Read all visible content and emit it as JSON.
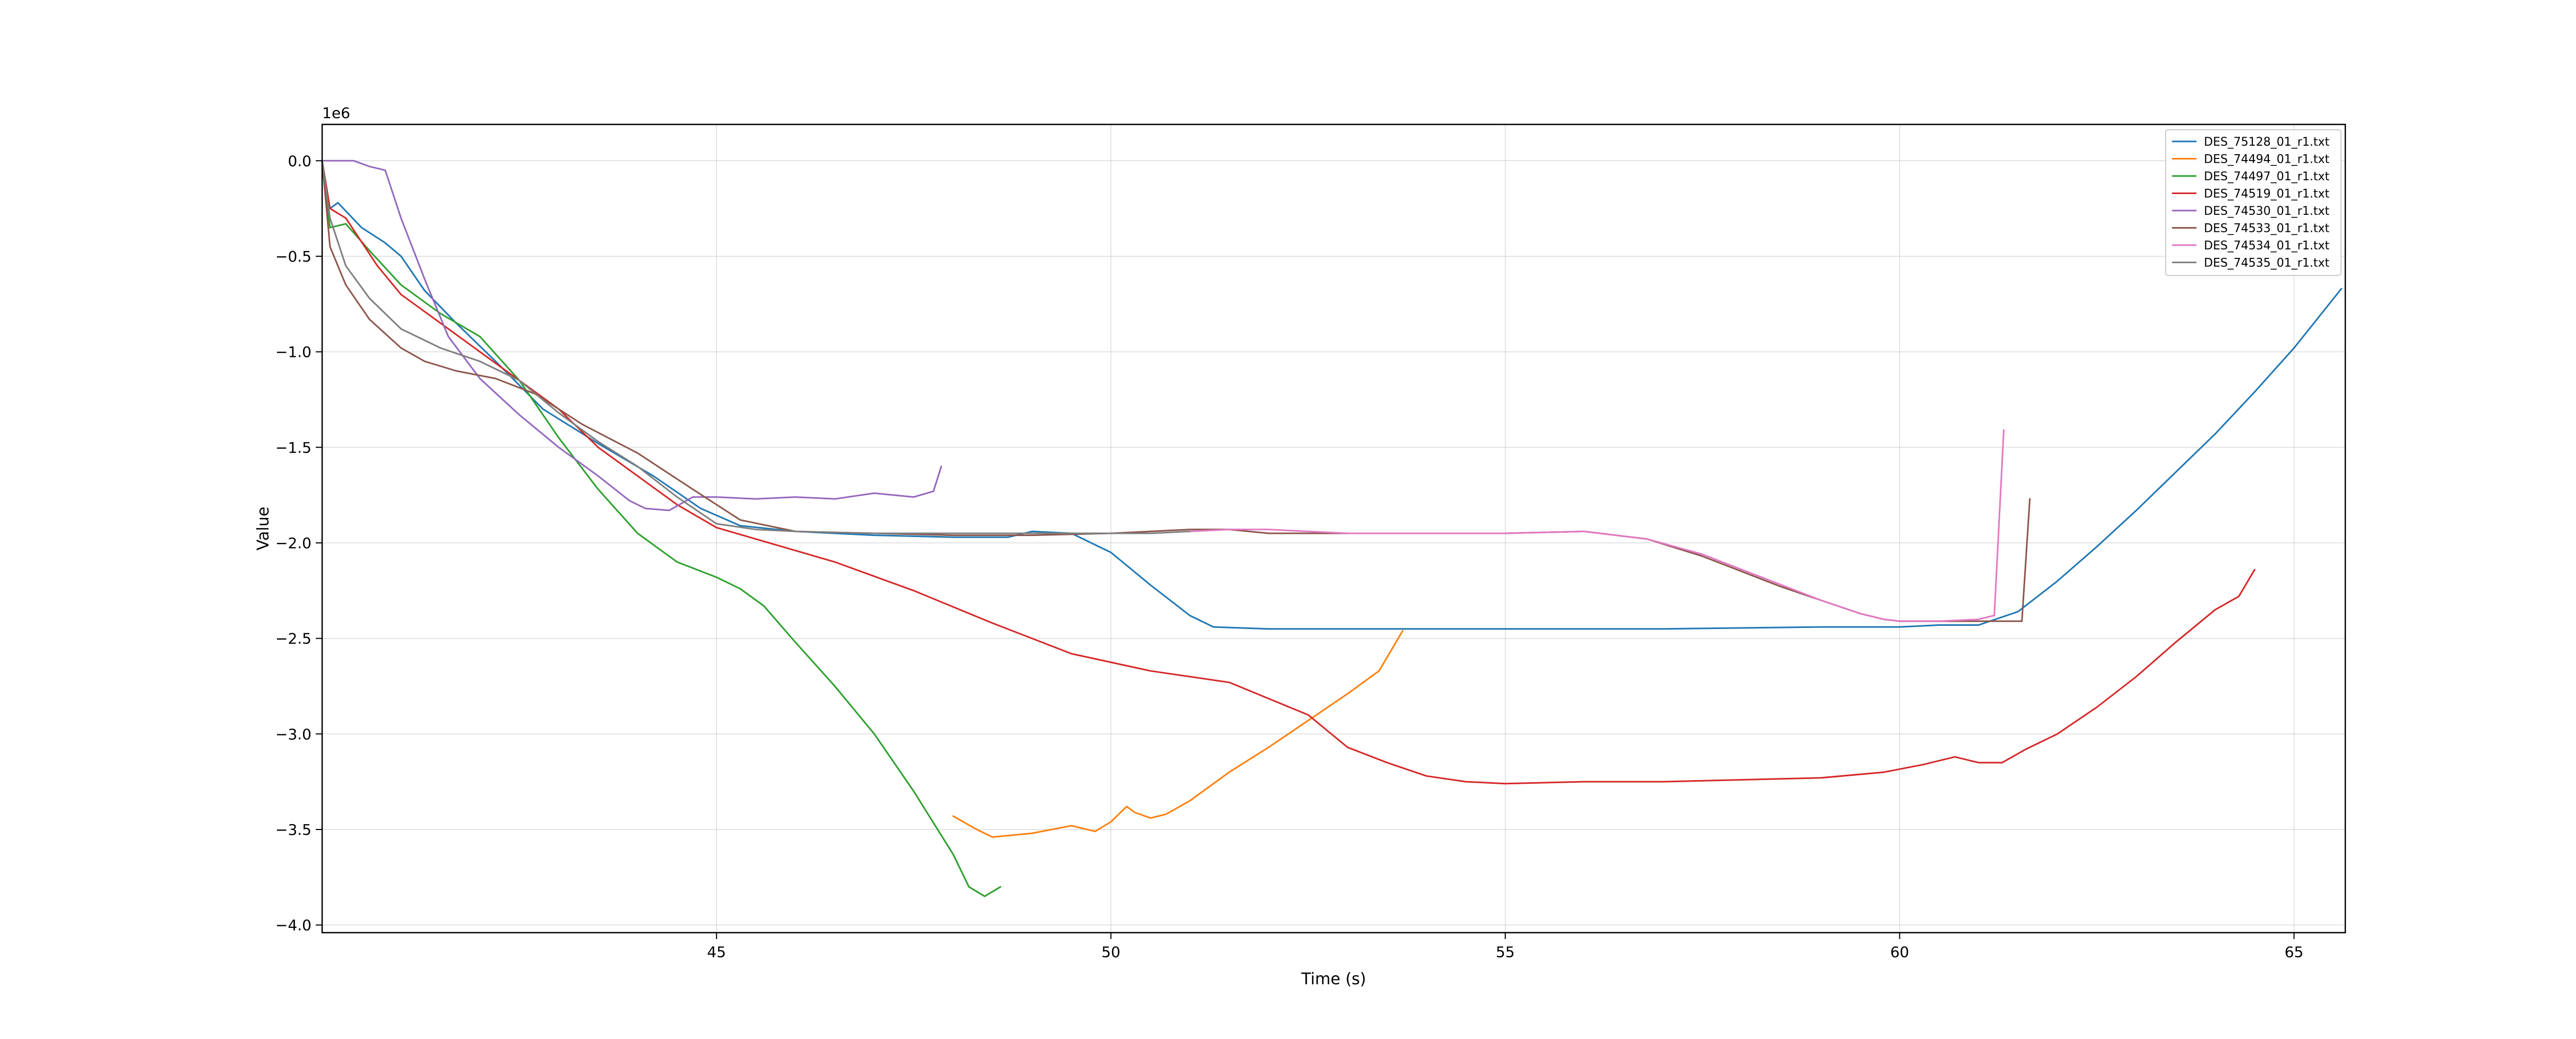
{
  "chart_data": {
    "type": "line",
    "title": "",
    "xlabel": "Time (s)",
    "ylabel": "Value",
    "y_offset_text": "1e6",
    "xlim": [
      40.0,
      65.65
    ],
    "ylim": [
      -4.04,
      0.19
    ],
    "xticks": [
      45,
      50,
      55,
      60,
      65
    ],
    "xtick_labels": [
      "45",
      "50",
      "55",
      "60",
      "65"
    ],
    "yticks": [
      0.0,
      -0.5,
      -1.0,
      -1.5,
      -2.0,
      -2.5,
      -3.0,
      -3.5,
      -4.0
    ],
    "ytick_labels": [
      "0.0",
      "−0.5",
      "−1.0",
      "−1.5",
      "−2.0",
      "−2.5",
      "−3.0",
      "−3.5",
      "−4.0"
    ],
    "grid": true,
    "legend_position": "top-right",
    "series": [
      {
        "name": "DES_75128_01_r1.txt",
        "color": "#1f77b4",
        "x": [
          40.0,
          40.1,
          40.2,
          40.5,
          40.8,
          41.0,
          41.3,
          41.7,
          42.2,
          42.8,
          43.5,
          44.2,
          44.8,
          45.3,
          46.0,
          47.0,
          48.0,
          48.7,
          49.0,
          49.5,
          50.0,
          50.5,
          51.0,
          51.3,
          52.0,
          53.0,
          55.0,
          57.0,
          59.0,
          60.0,
          60.5,
          61.0,
          61.5,
          62.0,
          62.5,
          63.0,
          63.5,
          64.0,
          64.5,
          65.0,
          65.6
        ],
        "y": [
          0.0,
          -0.25,
          -0.22,
          -0.35,
          -0.43,
          -0.5,
          -0.68,
          -0.85,
          -1.05,
          -1.3,
          -1.48,
          -1.65,
          -1.82,
          -1.91,
          -1.94,
          -1.96,
          -1.97,
          -1.97,
          -1.94,
          -1.95,
          -2.05,
          -2.22,
          -2.38,
          -2.44,
          -2.45,
          -2.45,
          -2.45,
          -2.45,
          -2.44,
          -2.44,
          -2.43,
          -2.43,
          -2.36,
          -2.2,
          -2.02,
          -1.83,
          -1.63,
          -1.43,
          -1.21,
          -0.98,
          -0.67
        ]
      },
      {
        "name": "DES_74494_01_r1.txt",
        "color": "#ff7f0e",
        "x": [
          48.0,
          48.3,
          48.5,
          49.0,
          49.5,
          49.8,
          50.0,
          50.2,
          50.3,
          50.5,
          50.7,
          51.0,
          51.5,
          52.0,
          52.5,
          53.0,
          53.4,
          53.7
        ],
        "y": [
          -3.43,
          -3.5,
          -3.54,
          -3.52,
          -3.48,
          -3.51,
          -3.46,
          -3.38,
          -3.41,
          -3.44,
          -3.42,
          -3.35,
          -3.2,
          -3.07,
          -2.93,
          -2.79,
          -2.67,
          -2.46
        ]
      },
      {
        "name": "DES_74497_01_r1.txt",
        "color": "#2ca02c",
        "x": [
          40.0,
          40.1,
          40.3,
          40.6,
          41.0,
          41.5,
          42.0,
          42.5,
          43.0,
          43.5,
          44.0,
          44.5,
          45.0,
          45.3,
          45.6,
          46.0,
          46.5,
          47.0,
          47.5,
          48.0,
          48.2,
          48.4,
          48.6
        ],
        "y": [
          0.0,
          -0.35,
          -0.33,
          -0.47,
          -0.65,
          -0.8,
          -0.92,
          -1.15,
          -1.45,
          -1.72,
          -1.95,
          -2.1,
          -2.18,
          -2.24,
          -2.33,
          -2.52,
          -2.75,
          -3.0,
          -3.3,
          -3.63,
          -3.8,
          -3.85,
          -3.8
        ]
      },
      {
        "name": "DES_74519_01_r1.txt",
        "color": "#d62728",
        "x": [
          40.0,
          40.1,
          40.3,
          40.7,
          41.0,
          41.5,
          42.0,
          42.5,
          43.0,
          43.5,
          44.0,
          44.5,
          45.0,
          45.5,
          46.5,
          47.5,
          48.5,
          49.5,
          50.5,
          51.5,
          52.5,
          53.0,
          53.5,
          54.0,
          54.5,
          55.0,
          56.0,
          57.0,
          58.0,
          59.0,
          59.8,
          60.3,
          60.7,
          61.0,
          61.3,
          61.6,
          62.0,
          62.5,
          63.0,
          63.5,
          64.0,
          64.3,
          64.5
        ],
        "y": [
          0.0,
          -0.25,
          -0.3,
          -0.55,
          -0.7,
          -0.85,
          -1.0,
          -1.15,
          -1.3,
          -1.5,
          -1.65,
          -1.8,
          -1.92,
          -1.98,
          -2.1,
          -2.25,
          -2.42,
          -2.58,
          -2.67,
          -2.73,
          -2.9,
          -3.07,
          -3.15,
          -3.22,
          -3.25,
          -3.26,
          -3.25,
          -3.25,
          -3.24,
          -3.23,
          -3.2,
          -3.16,
          -3.12,
          -3.15,
          -3.15,
          -3.08,
          -3.0,
          -2.86,
          -2.7,
          -2.52,
          -2.35,
          -2.28,
          -2.14
        ]
      },
      {
        "name": "DES_74530_01_r1.txt",
        "color": "#9467bd",
        "x": [
          40.0,
          40.2,
          40.4,
          40.6,
          40.8,
          41.0,
          41.3,
          41.6,
          42.0,
          42.5,
          43.0,
          43.5,
          43.9,
          44.1,
          44.4,
          44.7,
          45.0,
          45.5,
          46.0,
          46.5,
          47.0,
          47.5,
          47.75,
          47.85
        ],
        "y": [
          0.0,
          0.0,
          0.0,
          -0.03,
          -0.05,
          -0.3,
          -0.62,
          -0.92,
          -1.14,
          -1.33,
          -1.5,
          -1.65,
          -1.78,
          -1.82,
          -1.83,
          -1.76,
          -1.76,
          -1.77,
          -1.76,
          -1.77,
          -1.74,
          -1.76,
          -1.73,
          -1.6
        ]
      },
      {
        "name": "DES_74533_01_r1.txt",
        "color": "#8c564b",
        "x": [
          40.0,
          40.1,
          40.3,
          40.6,
          41.0,
          41.3,
          41.7,
          42.2,
          42.7,
          43.3,
          44.0,
          44.7,
          45.3,
          46.0,
          47.0,
          48.0,
          49.0,
          50.0,
          51.0,
          51.5,
          52.0,
          53.0,
          54.0,
          55.0,
          56.0,
          56.8,
          57.5,
          58.0,
          58.5,
          59.0,
          59.5,
          59.8,
          60.0,
          60.5,
          61.0,
          61.4,
          61.55,
          61.65
        ],
        "y": [
          0.0,
          -0.45,
          -0.65,
          -0.83,
          -0.98,
          -1.05,
          -1.1,
          -1.14,
          -1.22,
          -1.38,
          -1.53,
          -1.72,
          -1.88,
          -1.94,
          -1.95,
          -1.96,
          -1.96,
          -1.95,
          -1.93,
          -1.93,
          -1.95,
          -1.95,
          -1.95,
          -1.95,
          -1.94,
          -1.98,
          -2.07,
          -2.15,
          -2.23,
          -2.3,
          -2.37,
          -2.4,
          -2.41,
          -2.41,
          -2.41,
          -2.41,
          -2.41,
          -1.77
        ]
      },
      {
        "name": "DES_74534_01_r1.txt",
        "color": "#e377c2",
        "x": [
          51.0,
          51.5,
          52.0,
          53.0,
          54.0,
          55.0,
          56.0,
          56.8,
          57.5,
          58.0,
          58.5,
          59.0,
          59.5,
          59.8,
          60.0,
          60.5,
          61.0,
          61.2,
          61.32
        ],
        "y": [
          -1.94,
          -1.93,
          -1.93,
          -1.95,
          -1.95,
          -1.95,
          -1.94,
          -1.98,
          -2.06,
          -2.14,
          -2.22,
          -2.3,
          -2.37,
          -2.4,
          -2.41,
          -2.41,
          -2.4,
          -2.38,
          -1.41
        ]
      },
      {
        "name": "DES_74535_01_r1.txt",
        "color": "#7f7f7f",
        "x": [
          40.0,
          40.1,
          40.3,
          40.6,
          41.0,
          41.5,
          42.0,
          42.5,
          43.0,
          43.5,
          44.0,
          44.5,
          45.0,
          45.5,
          46.0,
          47.0,
          48.0,
          49.0,
          50.0,
          50.5,
          51.0
        ],
        "y": [
          0.0,
          -0.3,
          -0.55,
          -0.72,
          -0.88,
          -0.98,
          -1.05,
          -1.15,
          -1.32,
          -1.47,
          -1.6,
          -1.76,
          -1.9,
          -1.93,
          -1.94,
          -1.95,
          -1.95,
          -1.95,
          -1.95,
          -1.95,
          -1.94
        ]
      }
    ]
  }
}
